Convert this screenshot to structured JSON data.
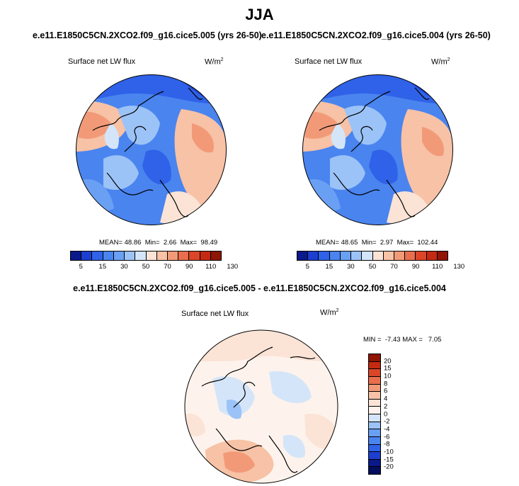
{
  "title": "JJA",
  "panel_left": {
    "subtitle": "e.e11.E1850C5CN.2XCO2.f09_g16.cice5.005 (yrs 26-50)",
    "var_label": "Surface net LW flux",
    "units": "W/m",
    "units_exp": "2",
    "mean_label": "MEAN=",
    "mean": "48.86",
    "min_label": "Min=",
    "min": "2.66",
    "max_label": "Max=",
    "max": "98.49"
  },
  "panel_right": {
    "subtitle": "e.e11.E1850C5CN.2XCO2.f09_g16.cice5.004 (yrs 26-50)",
    "var_label": "Surface net LW flux",
    "units": "W/m",
    "units_exp": "2",
    "mean_label": "MEAN=",
    "mean": "48.65",
    "min_label": "Min=",
    "min": "2.97",
    "max_label": "Max=",
    "max": "102.44"
  },
  "panel_diff": {
    "subtitle": "e.e11.E1850C5CN.2XCO2.f09_g16.cice5.005 - e.e11.E1850C5CN.2XCO2.f09_g16.cice5.004",
    "var_label": "Surface net LW flux",
    "units": "W/m",
    "units_exp": "2",
    "min_label": "MIN =",
    "min": "-7.43",
    "max_label": "MAX =",
    "max": "7.05"
  },
  "colorbar_main": {
    "ticks": [
      "5",
      "15",
      "30",
      "50",
      "70",
      "90",
      "110",
      "130"
    ],
    "colors": [
      "#0a1a8c",
      "#1d3fd0",
      "#2f62e8",
      "#4a84ef",
      "#6aa0f4",
      "#9cc3f7",
      "#d4e5f9",
      "#fbe3d6",
      "#f7c2a6",
      "#f29a78",
      "#e96e4d",
      "#db4628",
      "#c42a12",
      "#8f1505"
    ]
  },
  "colorbar_diff": {
    "ticks": [
      "20",
      "15",
      "10",
      "8",
      "6",
      "4",
      "2",
      "0",
      "-2",
      "-4",
      "-6",
      "-8",
      "-10",
      "-15",
      "-20"
    ],
    "colors": [
      "#8f1505",
      "#c42a12",
      "#db4628",
      "#e96e4d",
      "#f29a78",
      "#f7c2a6",
      "#fbe3d6",
      "#fdf3ec",
      "#d4e5f9",
      "#9cc3f7",
      "#6aa0f4",
      "#4a84ef",
      "#2f62e8",
      "#1d3fd0",
      "#0a1a8c",
      "#050e5c"
    ]
  }
}
